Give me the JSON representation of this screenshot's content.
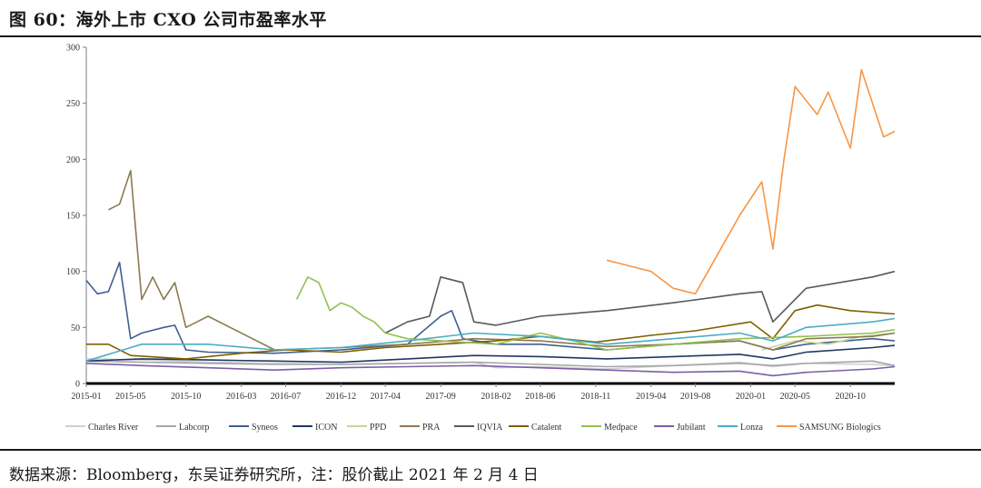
{
  "title": "图 60：海外上市 CXO 公司市盈率水平",
  "source": "数据来源：Bloomberg，东吴证券研究所，注：股价截止 2021 年 2 月 4 日",
  "chart_data": {
    "type": "line",
    "ylim": [
      0,
      300
    ],
    "yticks": [
      "0",
      "50",
      "100",
      "150",
      "200",
      "250",
      "300"
    ],
    "xlim": [
      "2015-01",
      "2021-02"
    ],
    "xticks": [
      "2015-01",
      "2015-05",
      "2015-10",
      "2016-03",
      "2016-07",
      "2016-12",
      "2017-04",
      "2017-09",
      "2018-02",
      "2018-06",
      "2018-11",
      "2019-04",
      "2019-08",
      "2020-01",
      "2020-05",
      "2020-10"
    ],
    "legend_position": "bottom",
    "series": [
      {
        "name": "Charles River",
        "color": "#cfcfcf",
        "x": [
          "2015-01",
          "2015-06",
          "2015-12",
          "2016-06",
          "2016-12",
          "2017-06",
          "2017-12",
          "2018-02",
          "2018-06",
          "2018-12",
          "2019-06",
          "2019-12",
          "2020-03",
          "2020-06",
          "2020-12",
          "2021-02"
        ],
        "values": [
          22,
          21,
          19,
          18,
          17,
          18,
          19,
          14,
          15,
          13,
          16,
          19,
          15,
          18,
          17,
          16
        ]
      },
      {
        "name": "Labcorp",
        "color": "#a6a6a6",
        "x": [
          "2015-01",
          "2015-06",
          "2015-12",
          "2016-06",
          "2016-12",
          "2017-06",
          "2017-12",
          "2018-06",
          "2018-12",
          "2019-06",
          "2019-12",
          "2020-03",
          "2020-06",
          "2020-12",
          "2021-02"
        ],
        "values": [
          20,
          19,
          18,
          17,
          17,
          18,
          19,
          17,
          15,
          16,
          18,
          16,
          18,
          20,
          16
        ]
      },
      {
        "name": "Syneos",
        "color": "#3f5f8f",
        "x": [
          "2015-01",
          "2015-02",
          "2015-03",
          "2015-04",
          "2015-05",
          "2015-06",
          "2015-08",
          "2015-09",
          "2015-10",
          "2015-12",
          "2016-06",
          "2016-12",
          "2017-06",
          "2017-09",
          "2017-10",
          "2017-11",
          "2018-02",
          "2018-06",
          "2018-12",
          "2019-06",
          "2019-12",
          "2020-03",
          "2020-06",
          "2020-12",
          "2021-02"
        ],
        "values": [
          92,
          80,
          82,
          108,
          40,
          45,
          50,
          52,
          30,
          28,
          27,
          30,
          35,
          60,
          65,
          40,
          35,
          35,
          30,
          35,
          38,
          30,
          35,
          40,
          38
        ]
      },
      {
        "name": "ICON",
        "color": "#1f3864",
        "x": [
          "2015-01",
          "2015-06",
          "2015-12",
          "2016-06",
          "2016-12",
          "2017-06",
          "2017-12",
          "2018-06",
          "2018-12",
          "2019-06",
          "2019-12",
          "2020-03",
          "2020-06",
          "2020-12",
          "2021-02"
        ],
        "values": [
          20,
          22,
          21,
          20,
          19,
          22,
          25,
          24,
          22,
          24,
          26,
          22,
          28,
          32,
          34
        ]
      },
      {
        "name": "PPD",
        "color": "#c4d79b",
        "x": [
          "2020-02",
          "2020-05",
          "2020-08",
          "2020-11",
          "2021-02"
        ],
        "values": [
          30,
          38,
          35,
          42,
          45
        ]
      },
      {
        "name": "PRA",
        "color": "#8c7a4f",
        "x": [
          "2015-03",
          "2015-04",
          "2015-05",
          "2015-06",
          "2015-07",
          "2015-08",
          "2015-09",
          "2015-10",
          "2015-11",
          "2015-12",
          "2016-06",
          "2016-12",
          "2017-06",
          "2017-12",
          "2018-06",
          "2018-12",
          "2019-06",
          "2019-12",
          "2020-03",
          "2020-06",
          "2020-12",
          "2021-02"
        ],
        "values": [
          155,
          160,
          190,
          75,
          95,
          75,
          90,
          50,
          55,
          60,
          30,
          32,
          35,
          40,
          38,
          33,
          35,
          38,
          30,
          40,
          42,
          45
        ]
      },
      {
        "name": "IQVIA",
        "color": "#595959",
        "x": [
          "2017-04",
          "2017-06",
          "2017-08",
          "2017-09",
          "2017-11",
          "2017-12",
          "2018-02",
          "2018-06",
          "2018-12",
          "2019-06",
          "2019-12",
          "2020-02",
          "2020-03",
          "2020-06",
          "2020-12",
          "2021-02"
        ],
        "values": [
          45,
          55,
          60,
          95,
          90,
          55,
          52,
          60,
          65,
          72,
          80,
          82,
          55,
          85,
          95,
          100
        ]
      },
      {
        "name": "Catalent",
        "color": "#7f6000",
        "x": [
          "2015-01",
          "2015-03",
          "2015-05",
          "2015-10",
          "2016-03",
          "2016-07",
          "2016-12",
          "2017-04",
          "2017-09",
          "2018-02",
          "2018-06",
          "2018-11",
          "2019-04",
          "2019-08",
          "2020-01",
          "2020-03",
          "2020-05",
          "2020-07",
          "2020-10",
          "2021-02"
        ],
        "values": [
          35,
          35,
          25,
          22,
          27,
          30,
          28,
          32,
          35,
          38,
          42,
          37,
          43,
          47,
          55,
          40,
          65,
          70,
          65,
          62
        ]
      },
      {
        "name": "Medpace",
        "color": "#92c050",
        "x": [
          "2016-08",
          "2016-09",
          "2016-10",
          "2016-11",
          "2016-12",
          "2017-01",
          "2017-02",
          "2017-03",
          "2017-04",
          "2017-06",
          "2017-09",
          "2018-02",
          "2018-06",
          "2018-09",
          "2018-12",
          "2019-06",
          "2019-12",
          "2020-06",
          "2020-12",
          "2021-02"
        ],
        "values": [
          75,
          95,
          90,
          65,
          72,
          68,
          60,
          55,
          45,
          40,
          38,
          35,
          45,
          38,
          30,
          35,
          40,
          42,
          45,
          48
        ]
      },
      {
        "name": "Jubilant",
        "color": "#7b5ea7",
        "x": [
          "2015-01",
          "2015-06",
          "2015-12",
          "2016-06",
          "2016-12",
          "2017-06",
          "2017-12",
          "2018-06",
          "2018-12",
          "2019-06",
          "2019-12",
          "2020-03",
          "2020-06",
          "2020-12",
          "2021-02"
        ],
        "values": [
          18,
          16,
          14,
          12,
          14,
          15,
          16,
          14,
          12,
          10,
          11,
          7,
          10,
          13,
          15
        ]
      },
      {
        "name": "Lonza",
        "color": "#4bacc6",
        "x": [
          "2015-01",
          "2015-06",
          "2015-12",
          "2016-06",
          "2016-12",
          "2017-06",
          "2017-12",
          "2018-06",
          "2018-12",
          "2019-06",
          "2019-12",
          "2020-03",
          "2020-06",
          "2020-12",
          "2021-02"
        ],
        "values": [
          20,
          35,
          35,
          30,
          32,
          38,
          45,
          42,
          35,
          40,
          45,
          38,
          50,
          55,
          58
        ]
      },
      {
        "name": "SAMSUNG Biologics",
        "color": "#f79646",
        "x": [
          "2018-12",
          "2019-02",
          "2019-04",
          "2019-06",
          "2019-08",
          "2019-10",
          "2019-12",
          "2020-02",
          "2020-03",
          "2020-04",
          "2020-05",
          "2020-07",
          "2020-08",
          "2020-10",
          "2020-11",
          "2020-12",
          "2021-01",
          "2021-02"
        ],
        "values": [
          110,
          105,
          100,
          85,
          80,
          115,
          150,
          180,
          120,
          200,
          265,
          240,
          260,
          210,
          280,
          250,
          220,
          225
        ]
      }
    ]
  }
}
